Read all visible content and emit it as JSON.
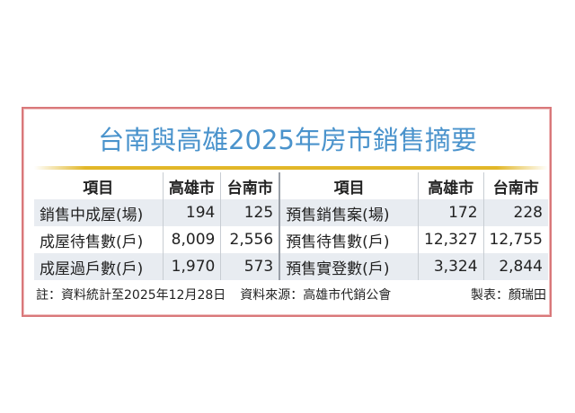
{
  "title": "台南與高雄2025年房市銷售摘要",
  "headers": [
    "項目",
    "高雄市",
    "台南市",
    "項目",
    "高雄市",
    "台南市"
  ],
  "rows": [
    [
      "銷售中成屋(場)",
      "194",
      "125",
      "預售銷售案(場)",
      "172",
      "228"
    ],
    [
      "成屋待售數(戶)",
      "8,009",
      "2,556",
      "預售待售數(戶)",
      "12,327",
      "12,755"
    ],
    [
      "成屋過戶數(戶)",
      "1,970",
      "573",
      "預售實登數(戶)",
      "3,324",
      "2,844"
    ]
  ],
  "footer": {
    "note": "註：資料統計至2025年12月28日",
    "source": "資料來源：高雄市代銷公會",
    "author": "製表：顏瑞田"
  },
  "colors": {
    "title": "#4a93cc",
    "border": "#d9787a",
    "rule": "#e2b728",
    "row_shade": "#e8ecf1"
  }
}
